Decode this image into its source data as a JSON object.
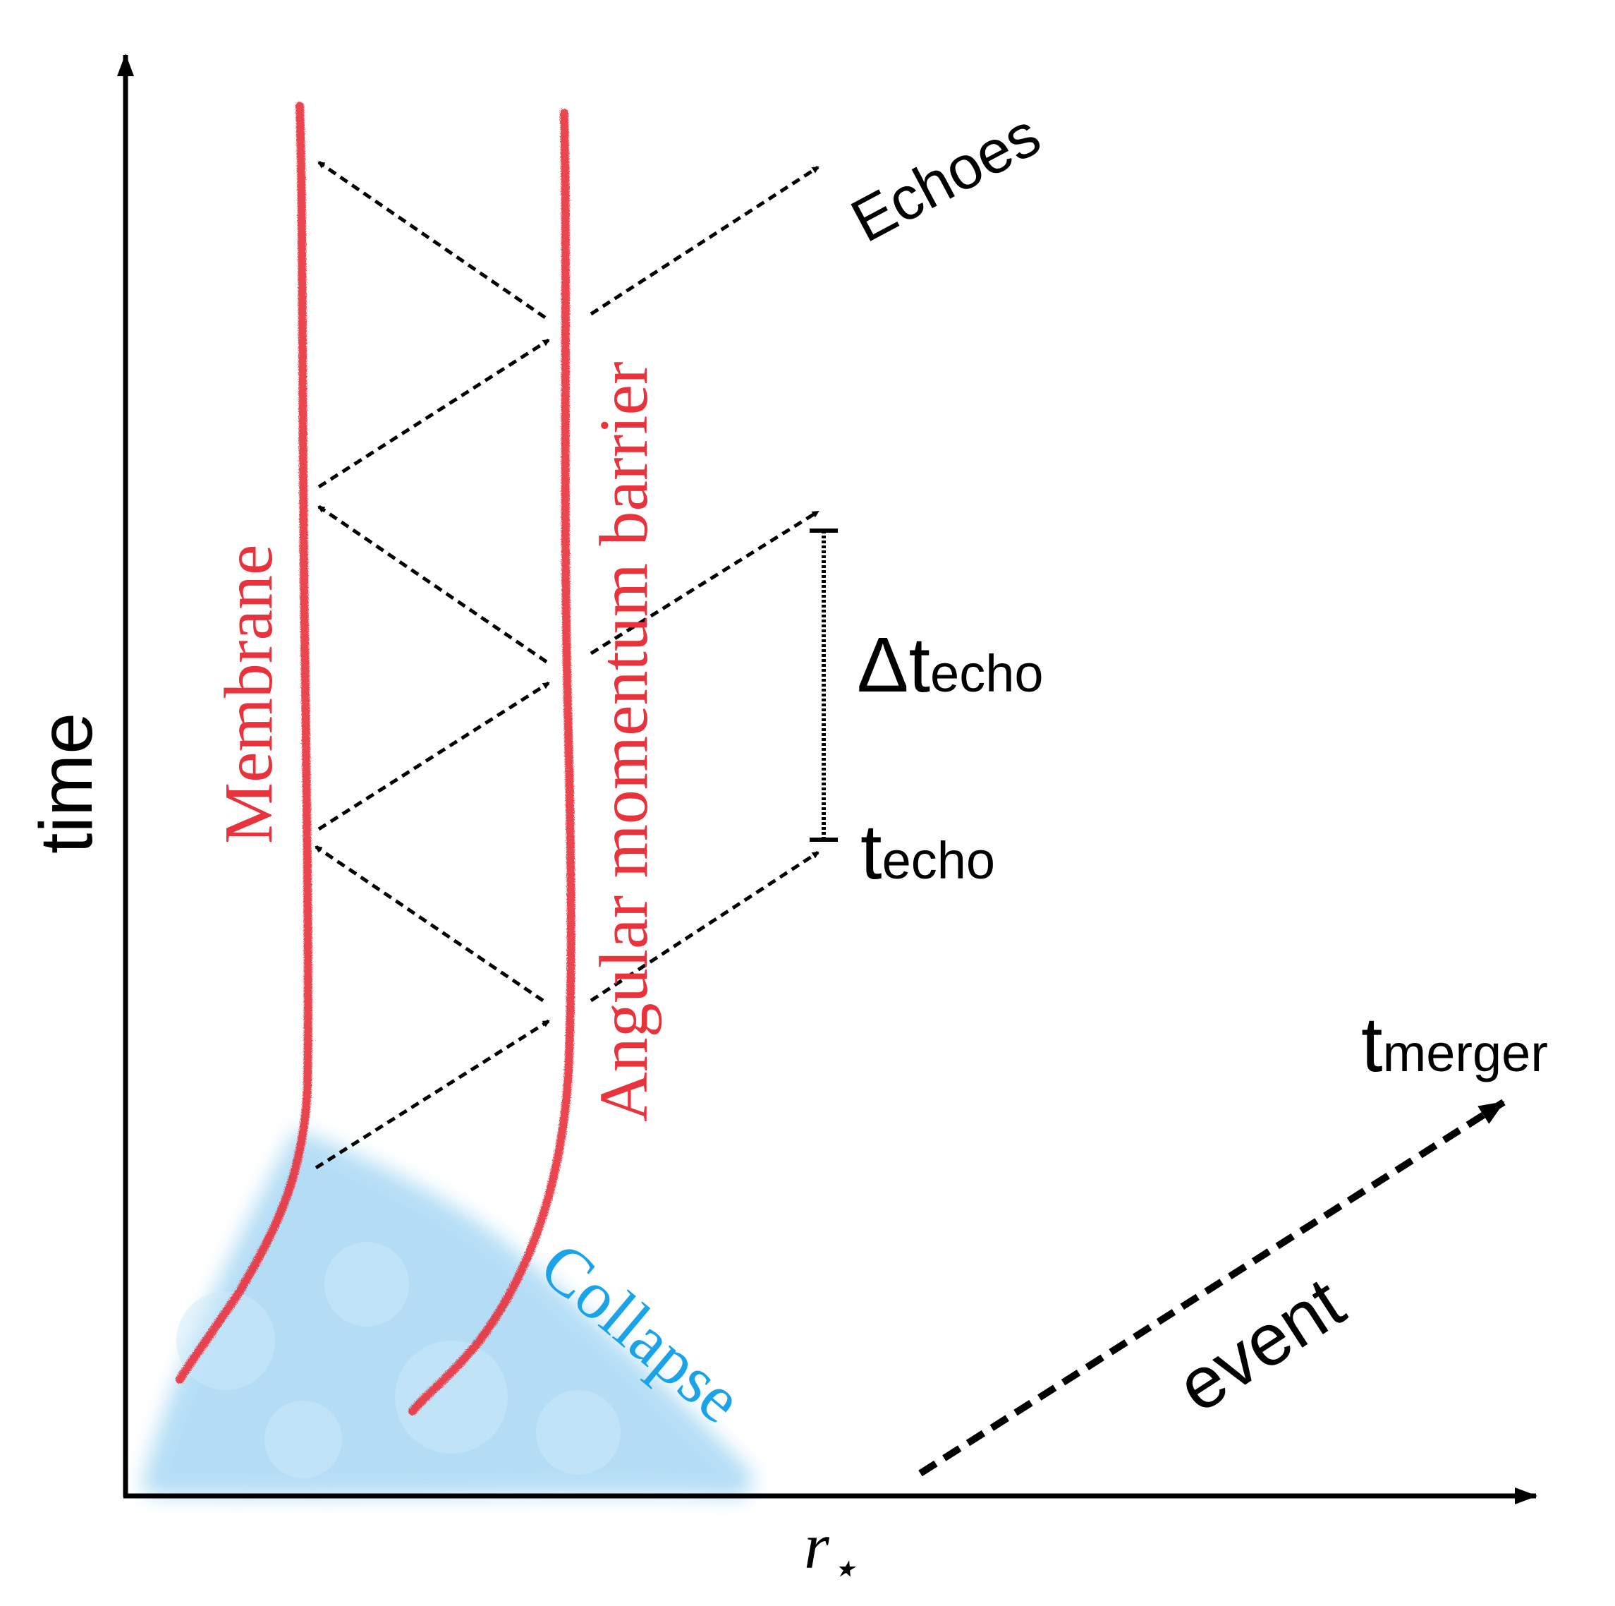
{
  "axes": {
    "y_label": "time",
    "x_label_main": "r",
    "x_label_sub": "⋆"
  },
  "curves": {
    "membrane": {
      "label": "Membrane",
      "color": "#e8323c"
    },
    "barrier": {
      "label": "Angular momentum barrier",
      "color": "#e8323c"
    }
  },
  "collapse": {
    "label": "Collapse",
    "color": "#1aa3e8",
    "cloud_color": "#a8d8f4"
  },
  "echoes_label": "Echoes",
  "delta_t_echo": {
    "symbol": "Δt",
    "subscript": "echo"
  },
  "t_echo": {
    "symbol": "t",
    "subscript": "echo"
  },
  "t_merger": {
    "symbol": "t",
    "subscript": "merger"
  },
  "event_label": "event",
  "colors": {
    "ink": "#000000",
    "red": "#e8323c",
    "blue": "#1aa3e8"
  }
}
